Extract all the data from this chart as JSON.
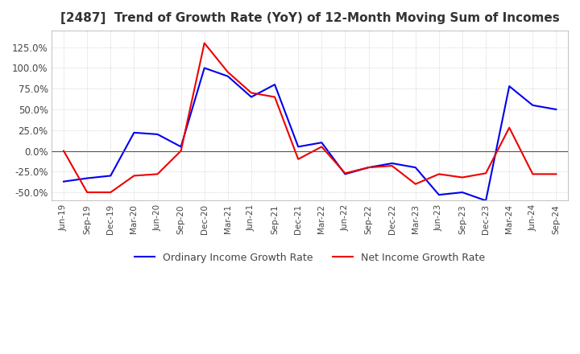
{
  "title": "[2487]  Trend of Growth Rate (YoY) of 12-Month Moving Sum of Incomes",
  "title_fontsize": 11,
  "line1_label": "Ordinary Income Growth Rate",
  "line2_label": "Net Income Growth Rate",
  "line1_color": "#0000EE",
  "line2_color": "#EE0000",
  "background_color": "#FFFFFF",
  "grid_color": "#BBBBBB",
  "ylim": [
    -0.6,
    0.145
  ],
  "yticks": [
    -0.5,
    -0.25,
    0.0,
    0.25,
    0.5,
    0.75,
    1.0,
    1.25
  ],
  "dates": [
    "Jun-19",
    "Sep-19",
    "Dec-19",
    "Mar-20",
    "Jun-20",
    "Sep-20",
    "Dec-20",
    "Mar-21",
    "Jun-21",
    "Sep-21",
    "Dec-21",
    "Mar-22",
    "Jun-22",
    "Sep-22",
    "Dec-22",
    "Mar-23",
    "Jun-23",
    "Sep-23",
    "Dec-23",
    "Mar-24",
    "Jun-24",
    "Sep-24"
  ],
  "ordinary_income": [
    -0.37,
    -0.33,
    -0.3,
    0.22,
    0.2,
    0.05,
    1.0,
    0.9,
    0.65,
    0.8,
    0.05,
    0.1,
    -0.28,
    -0.2,
    -0.15,
    -0.2,
    -0.53,
    -0.5,
    -0.6,
    0.78,
    0.55,
    0.5
  ],
  "net_income": [
    0.0,
    -0.5,
    -0.5,
    -0.3,
    -0.28,
    0.0,
    1.3,
    0.95,
    0.7,
    0.65,
    -0.1,
    0.05,
    -0.27,
    -0.2,
    -0.18,
    -0.4,
    -0.28,
    -0.32,
    -0.27,
    0.28,
    -0.28,
    -0.28
  ]
}
